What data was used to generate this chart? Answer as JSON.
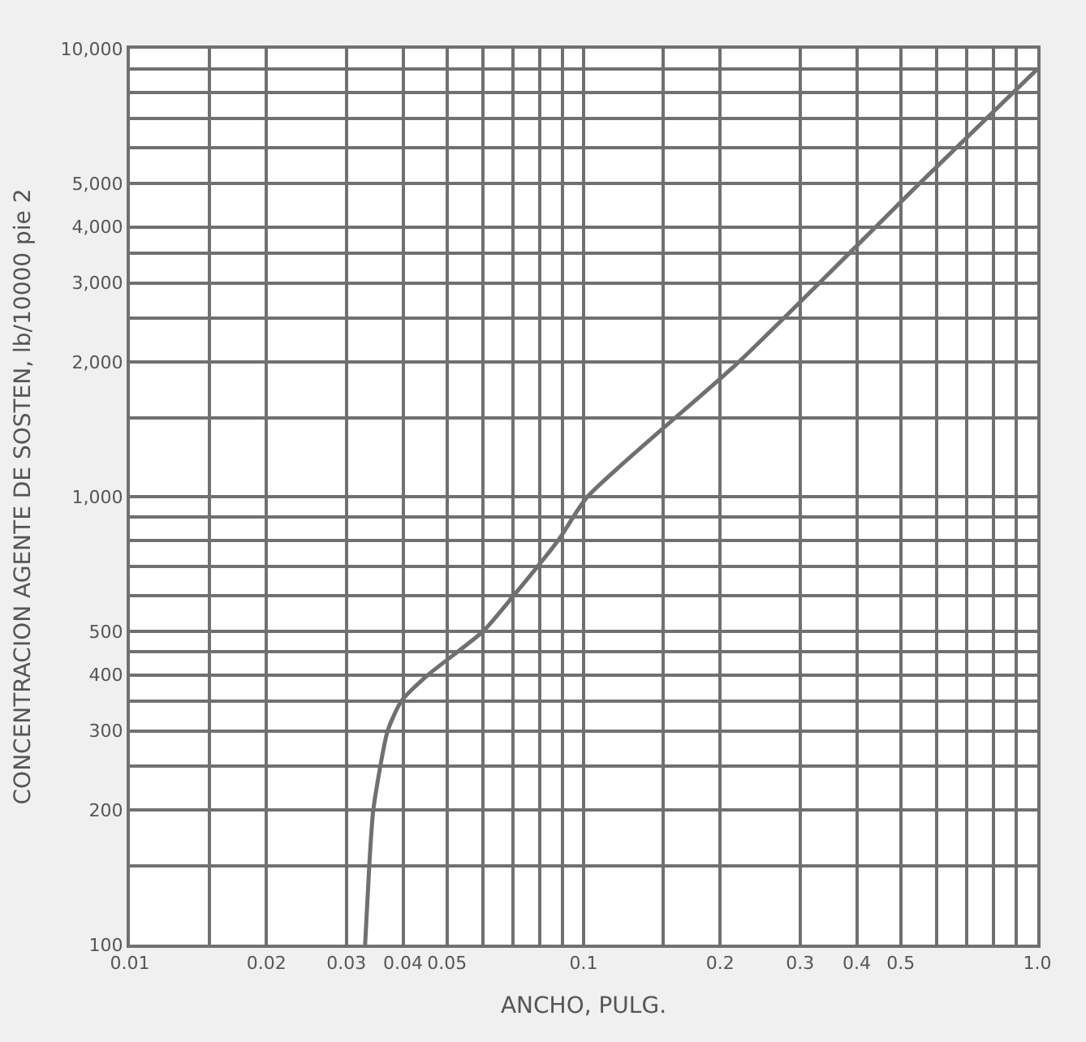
{
  "chart_data": {
    "type": "line",
    "xlabel": "ANCHO, PULG.",
    "ylabel": "CONCENTRACION AGENTE DE SOSTEN, lb/10000 pie 2",
    "log": "xy",
    "grid": true,
    "marker": "none",
    "line_style": "solid",
    "xlim": [
      0.01,
      1.0
    ],
    "ylim": [
      100,
      10000
    ],
    "xticks": [
      {
        "value": 0.01,
        "label": "0.01"
      },
      {
        "value": 0.015,
        "label": null
      },
      0.02,
      0.03,
      0.04,
      0.05,
      {
        "value": 0.06,
        "label": null
      },
      {
        "value": 0.07,
        "label": null
      },
      {
        "value": 0.08,
        "label": null
      },
      {
        "value": 0.09,
        "label": null
      },
      0.1,
      {
        "value": 0.15,
        "label": null
      },
      0.2,
      0.3,
      0.4,
      0.5,
      {
        "value": 0.6,
        "label": null
      },
      {
        "value": 0.7,
        "label": null
      },
      {
        "value": 0.8,
        "label": null
      },
      {
        "value": 0.9,
        "label": null
      },
      {
        "value": 1.0,
        "label": "1.0"
      }
    ],
    "yticks": [
      100,
      {
        "value": 150,
        "label": null
      },
      200,
      {
        "value": 250,
        "label": null
      },
      300,
      {
        "value": 350,
        "label": null
      },
      400,
      {
        "value": 450,
        "label": null
      },
      500,
      {
        "value": 600,
        "label": null
      },
      {
        "value": 700,
        "label": null
      },
      {
        "value": 800,
        "label": null
      },
      {
        "value": 900,
        "label": null
      },
      {
        "value": 1000,
        "label": "1,000"
      },
      {
        "value": 1500,
        "label": null
      },
      {
        "value": 2000,
        "label": "2,000"
      },
      {
        "value": 2500,
        "label": null
      },
      {
        "value": 3000,
        "label": "3,000"
      },
      {
        "value": 3500,
        "label": null
      },
      {
        "value": 4000,
        "label": "4,000"
      },
      {
        "value": 5000,
        "label": "5,000"
      },
      {
        "value": 6000,
        "label": null
      },
      {
        "value": 7000,
        "label": null
      },
      {
        "value": 8000,
        "label": null
      },
      {
        "value": 9000,
        "label": null
      },
      {
        "value": 10000,
        "label": "10,000"
      }
    ],
    "series": [
      {
        "color": "#707070",
        "x": [
          0.033,
          0.0337,
          0.0344,
          0.037,
          0.0397,
          0.0454,
          0.06,
          0.07,
          0.088,
          0.102,
          0.22,
          0.55,
          1.0
        ],
        "values": [
          100,
          150,
          200,
          300,
          350,
          400,
          500,
          600,
          800,
          1000,
          2000,
          5000,
          9000
        ]
      }
    ]
  }
}
